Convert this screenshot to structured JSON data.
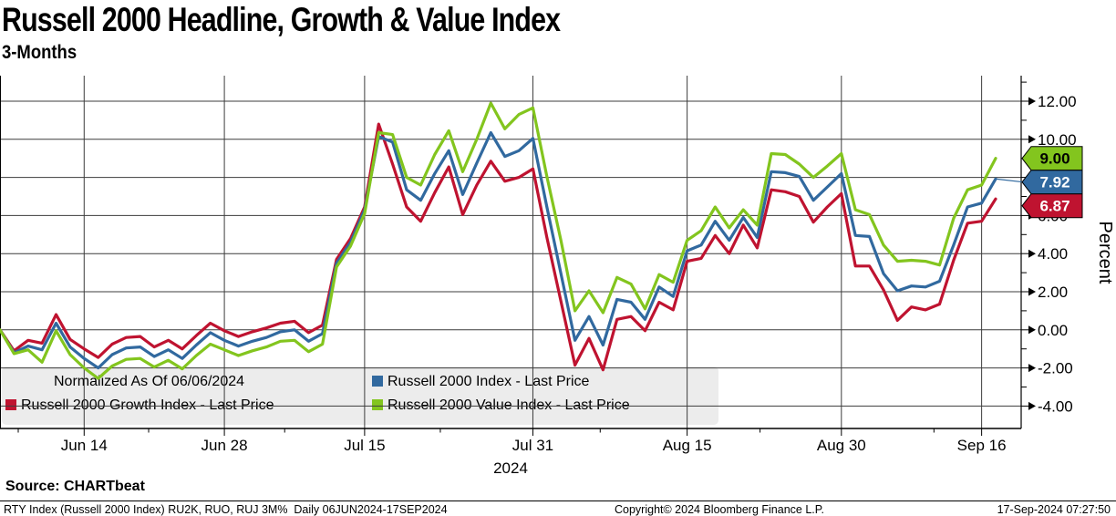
{
  "header": {
    "title": "Russell 2000 Headline, Growth & Value Index",
    "subtitle": "3-Months"
  },
  "legend": {
    "note": "Normalized As Of 06/06/2024",
    "items": [
      {
        "label": "Russell 2000 Index - Last Price",
        "color": "#31699f"
      },
      {
        "label": "Russell 2000 Growth Index - Last Price",
        "color": "#bf1330"
      },
      {
        "label": "Russell 2000 Value Index - Last Price",
        "color": "#83c51e"
      }
    ]
  },
  "footer": {
    "source": "Source: CHARTbeat",
    "left": "RTY Index (Russell 2000 Index) RU2K, RUO, RUJ 3M%  Daily 06JUN2024-17SEP2024",
    "center": "Copyright© 2024 Bloomberg Finance L.P.",
    "right": "17-Sep-2024 07:27:50"
  },
  "chart_data": {
    "type": "line",
    "title": "Russell 2000 Headline, Growth & Value Index",
    "subtitle": "3-Months",
    "ylabel": "Percent",
    "ylim": [
      -4,
      12
    ],
    "grid": true,
    "legend_position": "bottom-left-overlay",
    "year_label": "2024",
    "x_dates": [
      "Jun 6",
      "Jun 7",
      "Jun 10",
      "Jun 11",
      "Jun 12",
      "Jun 13",
      "Jun 14",
      "Jun 17",
      "Jun 18",
      "Jun 19",
      "Jun 20",
      "Jun 21",
      "Jun 24",
      "Jun 25",
      "Jun 26",
      "Jun 27",
      "Jun 28",
      "Jul 1",
      "Jul 2",
      "Jul 3",
      "Jul 5",
      "Jul 8",
      "Jul 9",
      "Jul 10",
      "Jul 11",
      "Jul 12",
      "Jul 15",
      "Jul 16",
      "Jul 17",
      "Jul 18",
      "Jul 19",
      "Jul 22",
      "Jul 23",
      "Jul 24",
      "Jul 25",
      "Jul 26",
      "Jul 29",
      "Jul 30",
      "Jul 31",
      "Aug 1",
      "Aug 2",
      "Aug 5",
      "Aug 6",
      "Aug 7",
      "Aug 8",
      "Aug 9",
      "Aug 12",
      "Aug 13",
      "Aug 14",
      "Aug 15",
      "Aug 16",
      "Aug 19",
      "Aug 20",
      "Aug 21",
      "Aug 22",
      "Aug 23",
      "Aug 26",
      "Aug 27",
      "Aug 28",
      "Aug 29",
      "Aug 30",
      "Sep 3",
      "Sep 4",
      "Sep 5",
      "Sep 6",
      "Sep 9",
      "Sep 10",
      "Sep 11",
      "Sep 12",
      "Sep 13",
      "Sep 16",
      "Sep 17"
    ],
    "x_major_ticks": [
      {
        "label": "Jun 14",
        "index": 6
      },
      {
        "label": "Jun 28",
        "index": 16
      },
      {
        "label": "Jul 15",
        "index": 26
      },
      {
        "label": "Jul 31",
        "index": 38
      },
      {
        "label": "Aug 15",
        "index": 49
      },
      {
        "label": "Aug 30",
        "index": 60
      },
      {
        "label": "Sep 16",
        "index": 70
      }
    ],
    "x_minor_tick_indices": [
      1.3,
      10.6,
      20.3,
      31.4,
      42.8,
      54.2,
      66.6
    ],
    "y_ticks": [
      {
        "value": 12,
        "label": "12.00"
      },
      {
        "value": 10,
        "label": "10.00"
      },
      {
        "value": 8,
        "label": "8.00"
      },
      {
        "value": 6,
        "label": "6.00"
      },
      {
        "value": 4,
        "label": "4.00"
      },
      {
        "value": 2,
        "label": "2.00"
      },
      {
        "value": 0,
        "label": "0.00"
      },
      {
        "value": -2,
        "label": "-2.00"
      },
      {
        "value": -4,
        "label": "-4.00"
      }
    ],
    "series": [
      {
        "name": "Russell 2000 Growth Index - Last Price",
        "color": "#bf1330",
        "values": [
          0,
          -1.1,
          -0.55,
          -0.7,
          0.8,
          -0.5,
          -1,
          -1.45,
          -0.75,
          -0.4,
          -0.35,
          -0.9,
          -0.55,
          -1,
          -0.3,
          0.35,
          -0.05,
          -0.35,
          -0.1,
          0.1,
          0.35,
          0.45,
          -0.15,
          0.25,
          3.7,
          4.8,
          6.45,
          10.8,
          8.7,
          6.45,
          5.7,
          7.2,
          8.55,
          6.05,
          7.6,
          8.85,
          7.8,
          8,
          8.45,
          4.85,
          1.5,
          -1.85,
          -0.45,
          -2.1,
          0.55,
          0.7,
          -0.05,
          1.45,
          1.05,
          3.6,
          3.75,
          4.95,
          4,
          5.5,
          4.3,
          7.35,
          7.25,
          7,
          5.65,
          6.45,
          7.15,
          3.35,
          3.35,
          2.1,
          0.5,
          1.2,
          1.05,
          1.35,
          3.65,
          5.6,
          5.7,
          6.87
        ]
      },
      {
        "name": "Russell 2000 Index - Last Price",
        "color": "#31699f",
        "values": [
          0,
          -1.2,
          -0.85,
          -1.05,
          0.35,
          -0.9,
          -1.5,
          -2,
          -1.3,
          -0.95,
          -0.9,
          -1.4,
          -1.05,
          -1.5,
          -0.8,
          -0.15,
          -0.55,
          -0.85,
          -0.6,
          -0.4,
          -0.1,
          0,
          -0.6,
          -0.2,
          3.5,
          4.6,
          6.3,
          10.15,
          9.85,
          7.35,
          6.8,
          8.2,
          9.4,
          7.1,
          8.75,
          10.35,
          9.1,
          9.4,
          10.05,
          6.45,
          2.95,
          -0.55,
          0.7,
          -0.8,
          1.6,
          1.45,
          0.55,
          2.25,
          1.75,
          4.15,
          4.45,
          5.7,
          4.7,
          5.9,
          4.85,
          8.3,
          8.25,
          8.05,
          6.8,
          7.5,
          8.2,
          4.95,
          4.9,
          2.95,
          2.05,
          2.3,
          2.25,
          2.55,
          4.45,
          6.45,
          6.65,
          7.92
        ]
      },
      {
        "name": "Russell 2000 Value Index - Last Price",
        "color": "#83c51e",
        "values": [
          0,
          -1.25,
          -1.05,
          -1.7,
          -0.05,
          -1.3,
          -2,
          -2.55,
          -1.9,
          -1.55,
          -1.5,
          -1.95,
          -1.6,
          -2.05,
          -1.35,
          -0.75,
          -1.05,
          -1.35,
          -1.1,
          -0.9,
          -0.6,
          -0.55,
          -1.15,
          -0.75,
          3.3,
          4.4,
          6.1,
          10.35,
          10.25,
          8,
          7.6,
          9.2,
          10.45,
          8.3,
          10,
          11.9,
          10.55,
          11.3,
          11.65,
          8.05,
          4.7,
          1,
          2.05,
          0.9,
          2.75,
          2.4,
          1.1,
          2.9,
          2.5,
          4.7,
          5.2,
          6.45,
          5.35,
          6.3,
          5.5,
          9.25,
          9.2,
          8.7,
          8,
          8.6,
          9.25,
          6.3,
          6.05,
          4.45,
          3.6,
          3.65,
          3.6,
          3.4,
          5.85,
          7.35,
          7.6,
          9
        ]
      }
    ],
    "price_tags": [
      {
        "label": "9.00",
        "value": 9.0,
        "bg": "#83c51e",
        "fg": "#000000",
        "connector": false
      },
      {
        "label": "7.92",
        "value": 7.92,
        "bg": "#31699f",
        "fg": "#ffffff",
        "connector": true
      },
      {
        "label": "6.87",
        "value": 6.87,
        "bg": "#bf1330",
        "fg": "#ffffff",
        "connector": false
      }
    ]
  }
}
